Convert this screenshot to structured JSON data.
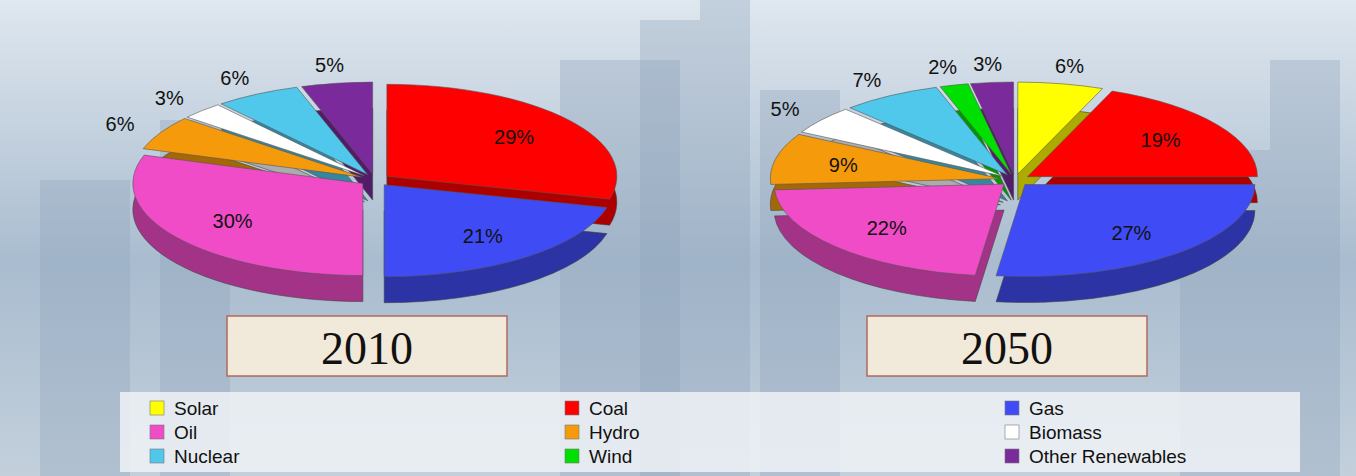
{
  "chart_data": [
    {
      "type": "pie",
      "title": "2010",
      "categories": [
        "Coal",
        "Gas",
        "Oil",
        "Hydro",
        "Biomass",
        "Nuclear",
        "Other Renewables"
      ],
      "values": [
        29,
        21,
        30,
        6,
        3,
        6,
        5
      ],
      "value_labels": [
        "29%",
        "21%",
        "30%",
        "6%",
        "3%",
        "6%",
        "5%"
      ],
      "colors": [
        "#ff0000",
        "#3f4cf5",
        "#f04cc8",
        "#f59a0a",
        "#ffffff",
        "#4fc8ec",
        "#7a2a9a"
      ],
      "data_labels": true
    },
    {
      "type": "pie",
      "title": "2050",
      "categories": [
        "Solar",
        "Coal",
        "Gas",
        "Oil",
        "Hydro",
        "Biomass",
        "Nuclear",
        "Wind",
        "Other Renewables"
      ],
      "values": [
        6,
        19,
        27,
        22,
        9,
        5,
        7,
        2,
        3
      ],
      "value_labels": [
        "6%",
        "19%",
        "27%",
        "22%",
        "9%",
        "5%",
        "7%",
        "2%",
        "3%"
      ],
      "colors": [
        "#ffff00",
        "#ff0000",
        "#3f4cf5",
        "#f04cc8",
        "#f59a0a",
        "#ffffff",
        "#4fc8ec",
        "#00e000",
        "#7a2a9a"
      ],
      "data_labels": true,
      "legend": "bottom"
    }
  ]
}
